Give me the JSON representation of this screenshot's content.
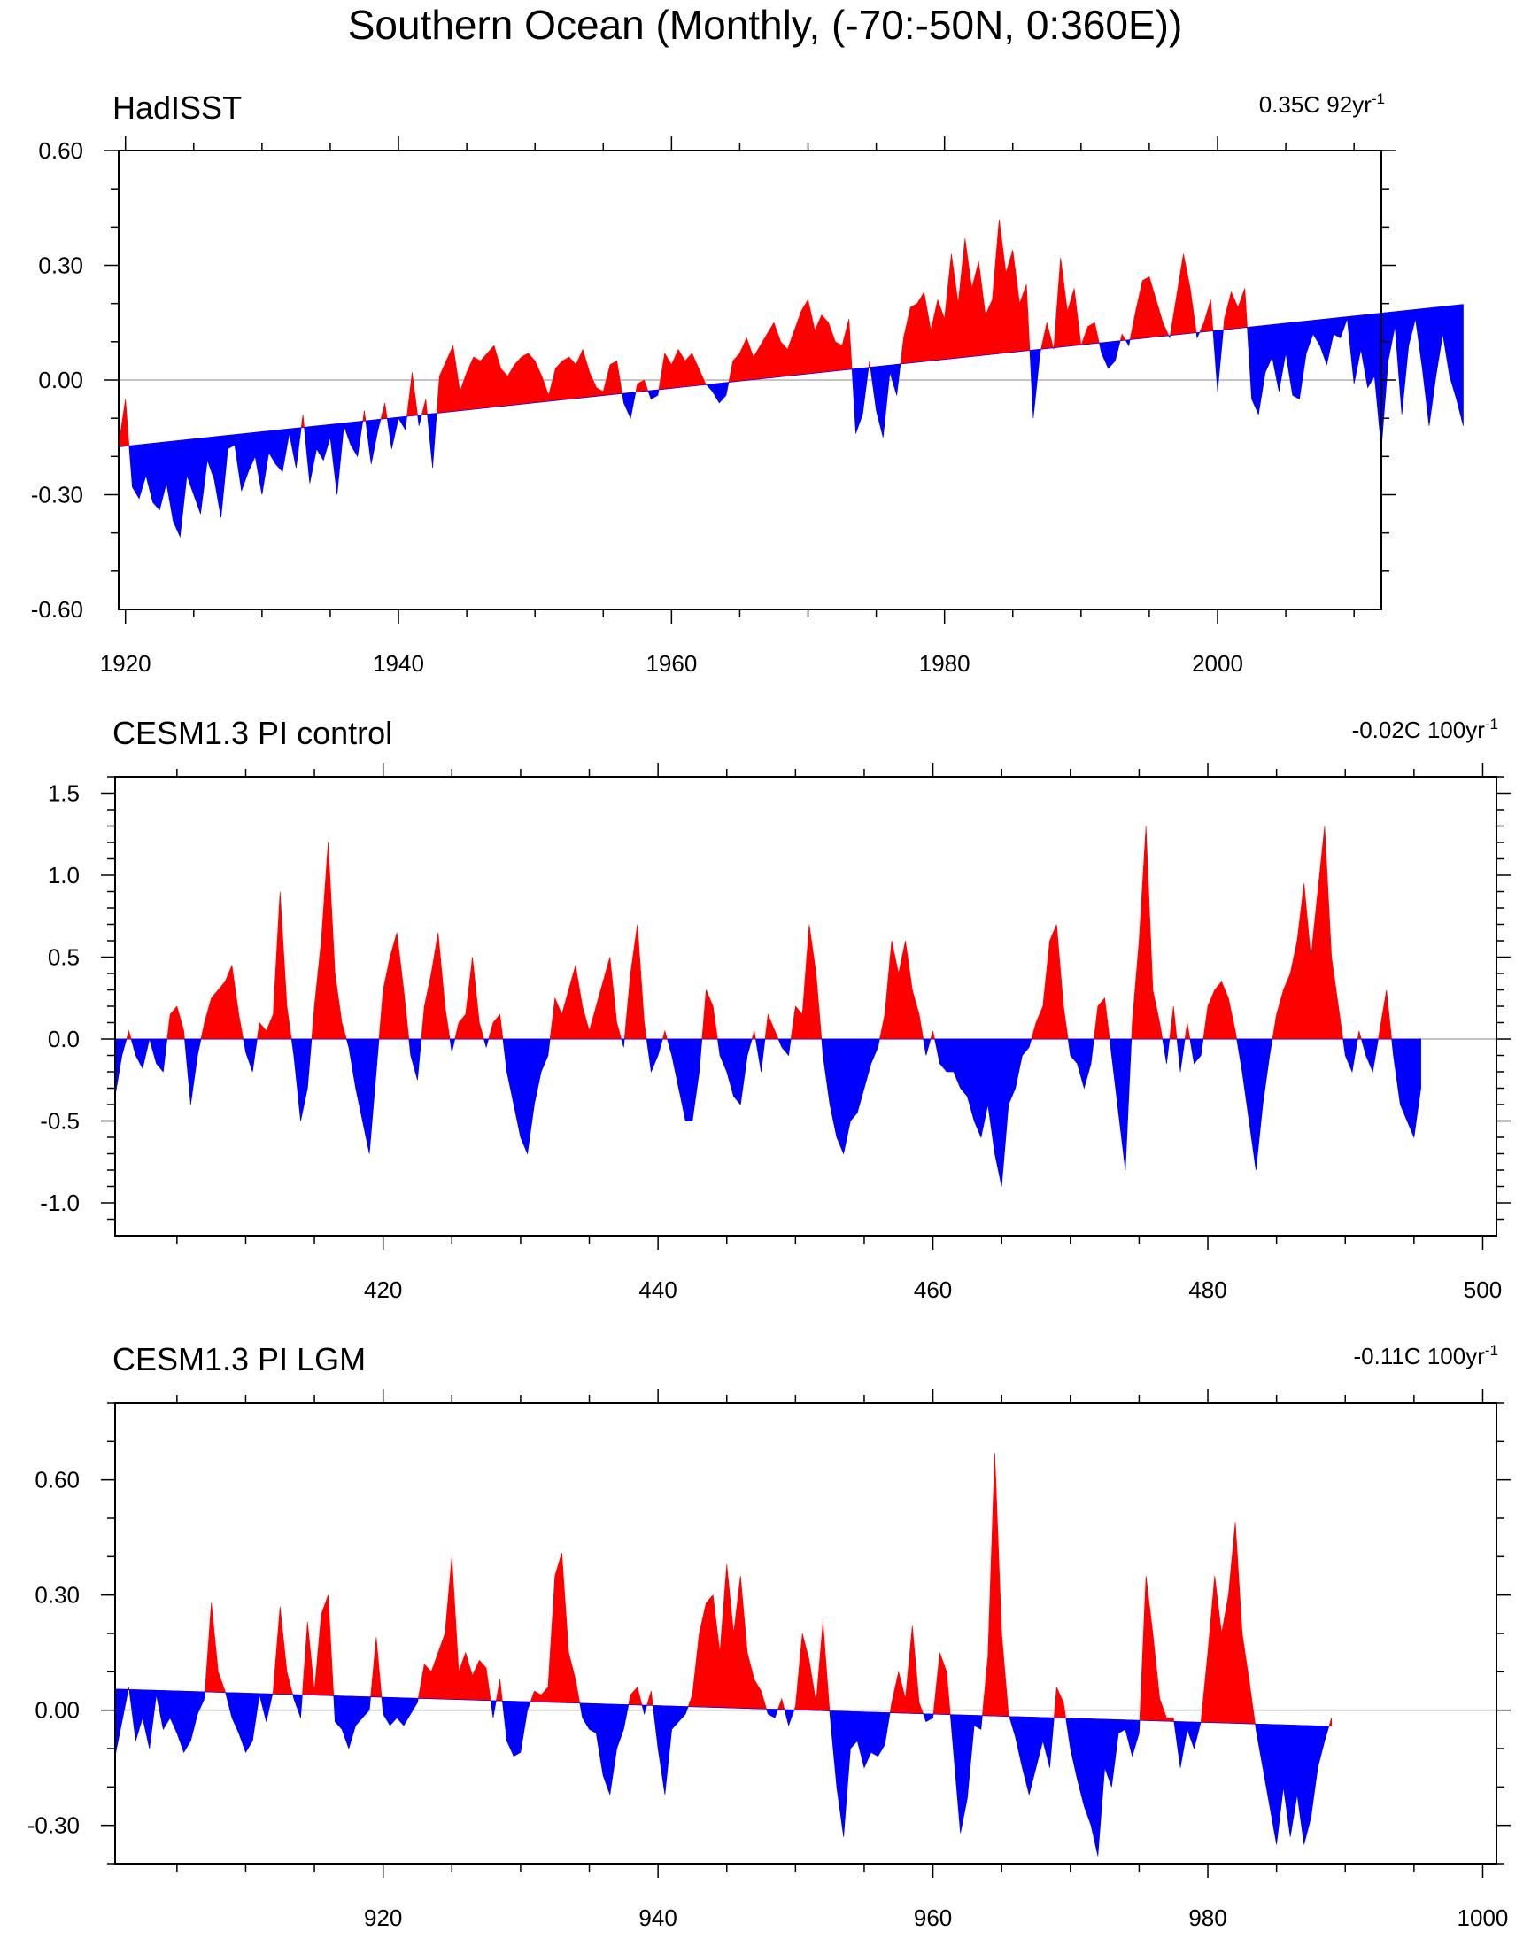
{
  "figure": {
    "title": "Southern Ocean (Monthly, (-70:-50N, 0:360E))"
  },
  "colors": {
    "above": "#ff0000",
    "below": "#0000ff",
    "zero_line": "#b0b0b0",
    "frame": "#000000"
  },
  "chart_data": [
    {
      "type": "area",
      "title": "HadISST",
      "trend_value": "0.35C 92yr",
      "trend_exp": "-1",
      "xlim": [
        1919.5,
        2012
      ],
      "ylim": [
        -0.6,
        0.6
      ],
      "xticks": [
        1920,
        1940,
        1960,
        1980,
        2000
      ],
      "xtick_labels": [
        "1920",
        "1940",
        "1960",
        "1980",
        "2000"
      ],
      "yticks": [
        -0.6,
        -0.3,
        0.0,
        0.3,
        0.6
      ],
      "ytick_labels": [
        "-0.60",
        "-0.30",
        "0.00",
        "0.30",
        "0.60"
      ],
      "yminor_step": 0.1,
      "trend_line": {
        "x": [
          1919.5,
          2012
        ],
        "y": [
          -0.175,
          0.175
        ]
      },
      "series_x_start": 1919.5,
      "series_x_step": 0.5,
      "series": [
        -0.17,
        -0.05,
        -0.28,
        -0.31,
        -0.25,
        -0.32,
        -0.34,
        -0.27,
        -0.37,
        -0.41,
        -0.25,
        -0.3,
        -0.35,
        -0.21,
        -0.26,
        -0.36,
        -0.18,
        -0.17,
        -0.29,
        -0.24,
        -0.2,
        -0.3,
        -0.19,
        -0.22,
        -0.24,
        -0.14,
        -0.23,
        -0.09,
        -0.27,
        -0.18,
        -0.21,
        -0.15,
        -0.3,
        -0.12,
        -0.17,
        -0.2,
        -0.08,
        -0.22,
        -0.13,
        -0.06,
        -0.18,
        -0.1,
        -0.13,
        0.02,
        -0.12,
        -0.05,
        -0.23,
        0.01,
        0.05,
        0.09,
        -0.03,
        0.02,
        0.06,
        0.05,
        0.07,
        0.09,
        0.03,
        0.01,
        0.04,
        0.06,
        0.07,
        0.05,
        0.01,
        -0.04,
        0.03,
        0.05,
        0.06,
        0.04,
        0.08,
        0.02,
        -0.02,
        -0.03,
        0.04,
        0.05,
        -0.06,
        -0.1,
        -0.01,
        0.0,
        -0.05,
        -0.04,
        0.07,
        0.04,
        0.08,
        0.05,
        0.07,
        0.03,
        -0.01,
        -0.03,
        -0.06,
        -0.04,
        0.05,
        0.07,
        0.11,
        0.06,
        0.09,
        0.12,
        0.15,
        0.1,
        0.08,
        0.13,
        0.18,
        0.21,
        0.13,
        0.17,
        0.15,
        0.1,
        0.09,
        0.16,
        -0.14,
        -0.09,
        0.05,
        -0.08,
        -0.15,
        0.02,
        -0.04,
        0.11,
        0.19,
        0.2,
        0.23,
        0.13,
        0.21,
        0.16,
        0.33,
        0.2,
        0.37,
        0.24,
        0.31,
        0.17,
        0.21,
        0.42,
        0.28,
        0.34,
        0.2,
        0.25,
        -0.1,
        0.07,
        0.15,
        0.08,
        0.32,
        0.18,
        0.24,
        0.09,
        0.14,
        0.15,
        0.07,
        0.03,
        0.05,
        0.12,
        0.09,
        0.18,
        0.26,
        0.27,
        0.21,
        0.15,
        0.11,
        0.22,
        0.33,
        0.24,
        0.11,
        0.15,
        0.21,
        -0.03,
        0.16,
        0.23,
        0.19,
        0.24,
        -0.05,
        -0.09,
        0.02,
        0.06,
        -0.03,
        0.07,
        -0.04,
        -0.05,
        0.07,
        0.12,
        0.09,
        0.04,
        0.12,
        0.11,
        0.16,
        -0.01,
        0.08,
        -0.02,
        0.01,
        -0.18,
        0.05,
        0.14,
        -0.09,
        0.09,
        0.16,
        0.03,
        -0.12,
        0.01,
        0.12,
        0.01,
        -0.05,
        -0.12
      ]
    },
    {
      "type": "area",
      "title": "CESM1.3 PI control",
      "trend_value": "-0.02C 100yr",
      "trend_exp": "-1",
      "xlim": [
        400.5,
        501
      ],
      "ylim": [
        -1.2,
        1.6
      ],
      "xticks": [
        420,
        440,
        460,
        480,
        500
      ],
      "xtick_labels": [
        "420",
        "440",
        "460",
        "480",
        "500"
      ],
      "yticks": [
        -1.0,
        -0.5,
        0.0,
        0.5,
        1.0,
        1.5
      ],
      "ytick_labels": [
        "-1.0",
        "-0.5",
        "0.0",
        "0.5",
        "1.0",
        "1.5"
      ],
      "yminor_step": 0.1,
      "trend_line": {
        "x": [
          400.5,
          501
        ],
        "y": [
          0.0,
          0.0
        ]
      },
      "series_x_start": 400.5,
      "series_x_step": 0.5,
      "series": [
        -0.35,
        -0.1,
        0.05,
        -0.1,
        -0.18,
        0.0,
        -0.15,
        -0.2,
        0.15,
        0.2,
        0.05,
        -0.4,
        -0.1,
        0.1,
        0.25,
        0.3,
        0.35,
        0.45,
        0.15,
        -0.08,
        -0.2,
        0.1,
        0.05,
        0.15,
        0.9,
        0.2,
        -0.1,
        -0.5,
        -0.3,
        0.2,
        0.6,
        1.2,
        0.4,
        0.1,
        -0.05,
        -0.3,
        -0.5,
        -0.7,
        -0.2,
        0.3,
        0.5,
        0.65,
        0.3,
        -0.1,
        -0.25,
        0.2,
        0.4,
        0.65,
        0.2,
        -0.08,
        0.1,
        0.15,
        0.5,
        0.1,
        -0.05,
        0.1,
        0.15,
        -0.2,
        -0.4,
        -0.6,
        -0.7,
        -0.4,
        -0.2,
        -0.1,
        0.25,
        0.15,
        0.3,
        0.45,
        0.2,
        0.05,
        0.2,
        0.35,
        0.5,
        0.1,
        -0.05,
        0.4,
        0.7,
        0.1,
        -0.2,
        -0.1,
        0.05,
        -0.1,
        -0.3,
        -0.5,
        -0.5,
        -0.2,
        0.3,
        0.2,
        -0.1,
        -0.2,
        -0.35,
        -0.4,
        -0.1,
        0.05,
        -0.2,
        0.15,
        0.05,
        -0.05,
        -0.1,
        0.2,
        0.15,
        0.7,
        0.4,
        -0.1,
        -0.4,
        -0.6,
        -0.7,
        -0.5,
        -0.45,
        -0.3,
        -0.15,
        -0.05,
        0.15,
        0.6,
        0.4,
        0.6,
        0.3,
        0.15,
        -0.1,
        0.05,
        -0.15,
        -0.2,
        -0.2,
        -0.3,
        -0.35,
        -0.5,
        -0.6,
        -0.4,
        -0.7,
        -0.9,
        -0.4,
        -0.3,
        -0.1,
        -0.05,
        0.1,
        0.2,
        0.6,
        0.7,
        0.2,
        -0.1,
        -0.15,
        -0.3,
        -0.15,
        0.2,
        0.25,
        -0.1,
        -0.45,
        -0.8,
        0.1,
        0.6,
        1.3,
        0.3,
        0.1,
        -0.15,
        0.2,
        -0.2,
        0.1,
        -0.15,
        -0.1,
        0.2,
        0.3,
        0.35,
        0.25,
        0.05,
        -0.2,
        -0.5,
        -0.8,
        -0.4,
        -0.1,
        0.15,
        0.3,
        0.4,
        0.6,
        0.95,
        0.5,
        0.9,
        1.3,
        0.5,
        0.2,
        -0.1,
        -0.2,
        0.05,
        -0.1,
        -0.2,
        0.05,
        0.3,
        -0.1,
        -0.4,
        -0.5,
        -0.6,
        -0.3
      ]
    },
    {
      "type": "area",
      "title": "CESM1.3 PI LGM",
      "trend_value": "-0.11C 100yr",
      "trend_exp": "-1",
      "xlim": [
        900.5,
        1001
      ],
      "ylim": [
        -0.4,
        0.8
      ],
      "xticks": [
        920,
        940,
        960,
        980,
        1000
      ],
      "xtick_labels": [
        "920",
        "940",
        "960",
        "980",
        "1000"
      ],
      "yticks": [
        -0.3,
        0.0,
        0.3,
        0.6
      ],
      "ytick_labels": [
        "-0.30",
        "0.00",
        "0.30",
        "0.60"
      ],
      "yminor_step": 0.1,
      "trend_line": {
        "x": [
          900.5,
          1001
        ],
        "y": [
          0.055,
          -0.055
        ]
      },
      "series_x_start": 900.5,
      "series_x_step": 0.5,
      "series": [
        -0.12,
        -0.03,
        0.06,
        -0.08,
        -0.02,
        -0.1,
        0.04,
        -0.05,
        -0.02,
        -0.06,
        -0.11,
        -0.08,
        -0.01,
        0.03,
        0.28,
        0.1,
        0.05,
        -0.02,
        -0.06,
        -0.11,
        -0.08,
        0.04,
        -0.03,
        0.05,
        0.27,
        0.1,
        0.03,
        -0.02,
        0.23,
        0.05,
        0.25,
        0.3,
        -0.03,
        -0.05,
        -0.1,
        -0.04,
        -0.02,
        0.0,
        0.19,
        -0.01,
        -0.04,
        -0.02,
        -0.04,
        -0.01,
        0.02,
        0.12,
        0.1,
        0.15,
        0.2,
        0.4,
        0.1,
        0.15,
        0.09,
        0.13,
        0.11,
        -0.02,
        0.08,
        -0.08,
        -0.12,
        -0.11,
        0.0,
        0.05,
        0.04,
        0.06,
        0.35,
        0.41,
        0.15,
        0.08,
        -0.02,
        -0.05,
        -0.06,
        -0.17,
        -0.22,
        -0.1,
        -0.05,
        0.04,
        0.06,
        -0.01,
        0.05,
        -0.1,
        -0.22,
        -0.05,
        -0.03,
        -0.01,
        0.04,
        0.2,
        0.28,
        0.3,
        0.15,
        0.38,
        0.2,
        0.35,
        0.15,
        0.08,
        0.05,
        -0.01,
        -0.02,
        0.03,
        -0.04,
        0.01,
        0.2,
        0.13,
        0.02,
        0.23,
        -0.01,
        -0.2,
        -0.33,
        -0.1,
        -0.08,
        -0.15,
        -0.11,
        -0.12,
        -0.09,
        0.02,
        0.1,
        0.03,
        0.22,
        0.02,
        -0.03,
        -0.02,
        0.15,
        0.1,
        -0.11,
        -0.32,
        -0.23,
        -0.04,
        -0.05,
        0.14,
        0.67,
        0.2,
        -0.01,
        -0.07,
        -0.15,
        -0.22,
        -0.15,
        -0.08,
        -0.15,
        0.06,
        0.02,
        -0.1,
        -0.18,
        -0.25,
        -0.3,
        -0.38,
        -0.15,
        -0.2,
        -0.06,
        -0.05,
        -0.12,
        -0.06,
        0.35,
        0.2,
        0.03,
        -0.02,
        -0.02,
        -0.15,
        -0.05,
        -0.1,
        -0.03,
        0.15,
        0.35,
        0.2,
        0.3,
        0.49,
        0.2,
        0.08,
        -0.05,
        -0.15,
        -0.25,
        -0.35,
        -0.2,
        -0.33,
        -0.22,
        -0.35,
        -0.28,
        -0.15,
        -0.08,
        -0.02
      ]
    }
  ]
}
